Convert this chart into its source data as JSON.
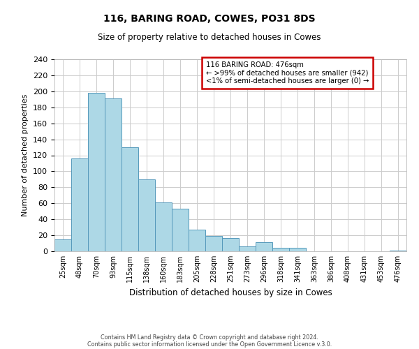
{
  "title": "116, BARING ROAD, COWES, PO31 8DS",
  "subtitle": "Size of property relative to detached houses in Cowes",
  "xlabel": "Distribution of detached houses by size in Cowes",
  "ylabel": "Number of detached properties",
  "bar_color": "#add8e6",
  "bar_edge_color": "#5599bb",
  "categories": [
    "25sqm",
    "48sqm",
    "70sqm",
    "93sqm",
    "115sqm",
    "138sqm",
    "160sqm",
    "183sqm",
    "205sqm",
    "228sqm",
    "251sqm",
    "273sqm",
    "296sqm",
    "318sqm",
    "341sqm",
    "363sqm",
    "386sqm",
    "408sqm",
    "431sqm",
    "453sqm",
    "476sqm"
  ],
  "values": [
    15,
    116,
    198,
    191,
    130,
    90,
    61,
    53,
    27,
    19,
    17,
    6,
    11,
    4,
    4,
    0,
    0,
    0,
    0,
    0,
    1
  ],
  "ylim": [
    0,
    240
  ],
  "yticks": [
    0,
    20,
    40,
    60,
    80,
    100,
    120,
    140,
    160,
    180,
    200,
    220,
    240
  ],
  "annotation_box_title": "116 BARING ROAD: 476sqm",
  "annotation_line1": "← >99% of detached houses are smaller (942)",
  "annotation_line2": "<1% of semi-detached houses are larger (0) →",
  "annotation_box_color": "#ffffff",
  "annotation_box_edge_color": "#cc0000",
  "footer_line1": "Contains HM Land Registry data © Crown copyright and database right 2024.",
  "footer_line2": "Contains public sector information licensed under the Open Government Licence v.3.0.",
  "background_color": "#ffffff",
  "grid_color": "#cccccc"
}
